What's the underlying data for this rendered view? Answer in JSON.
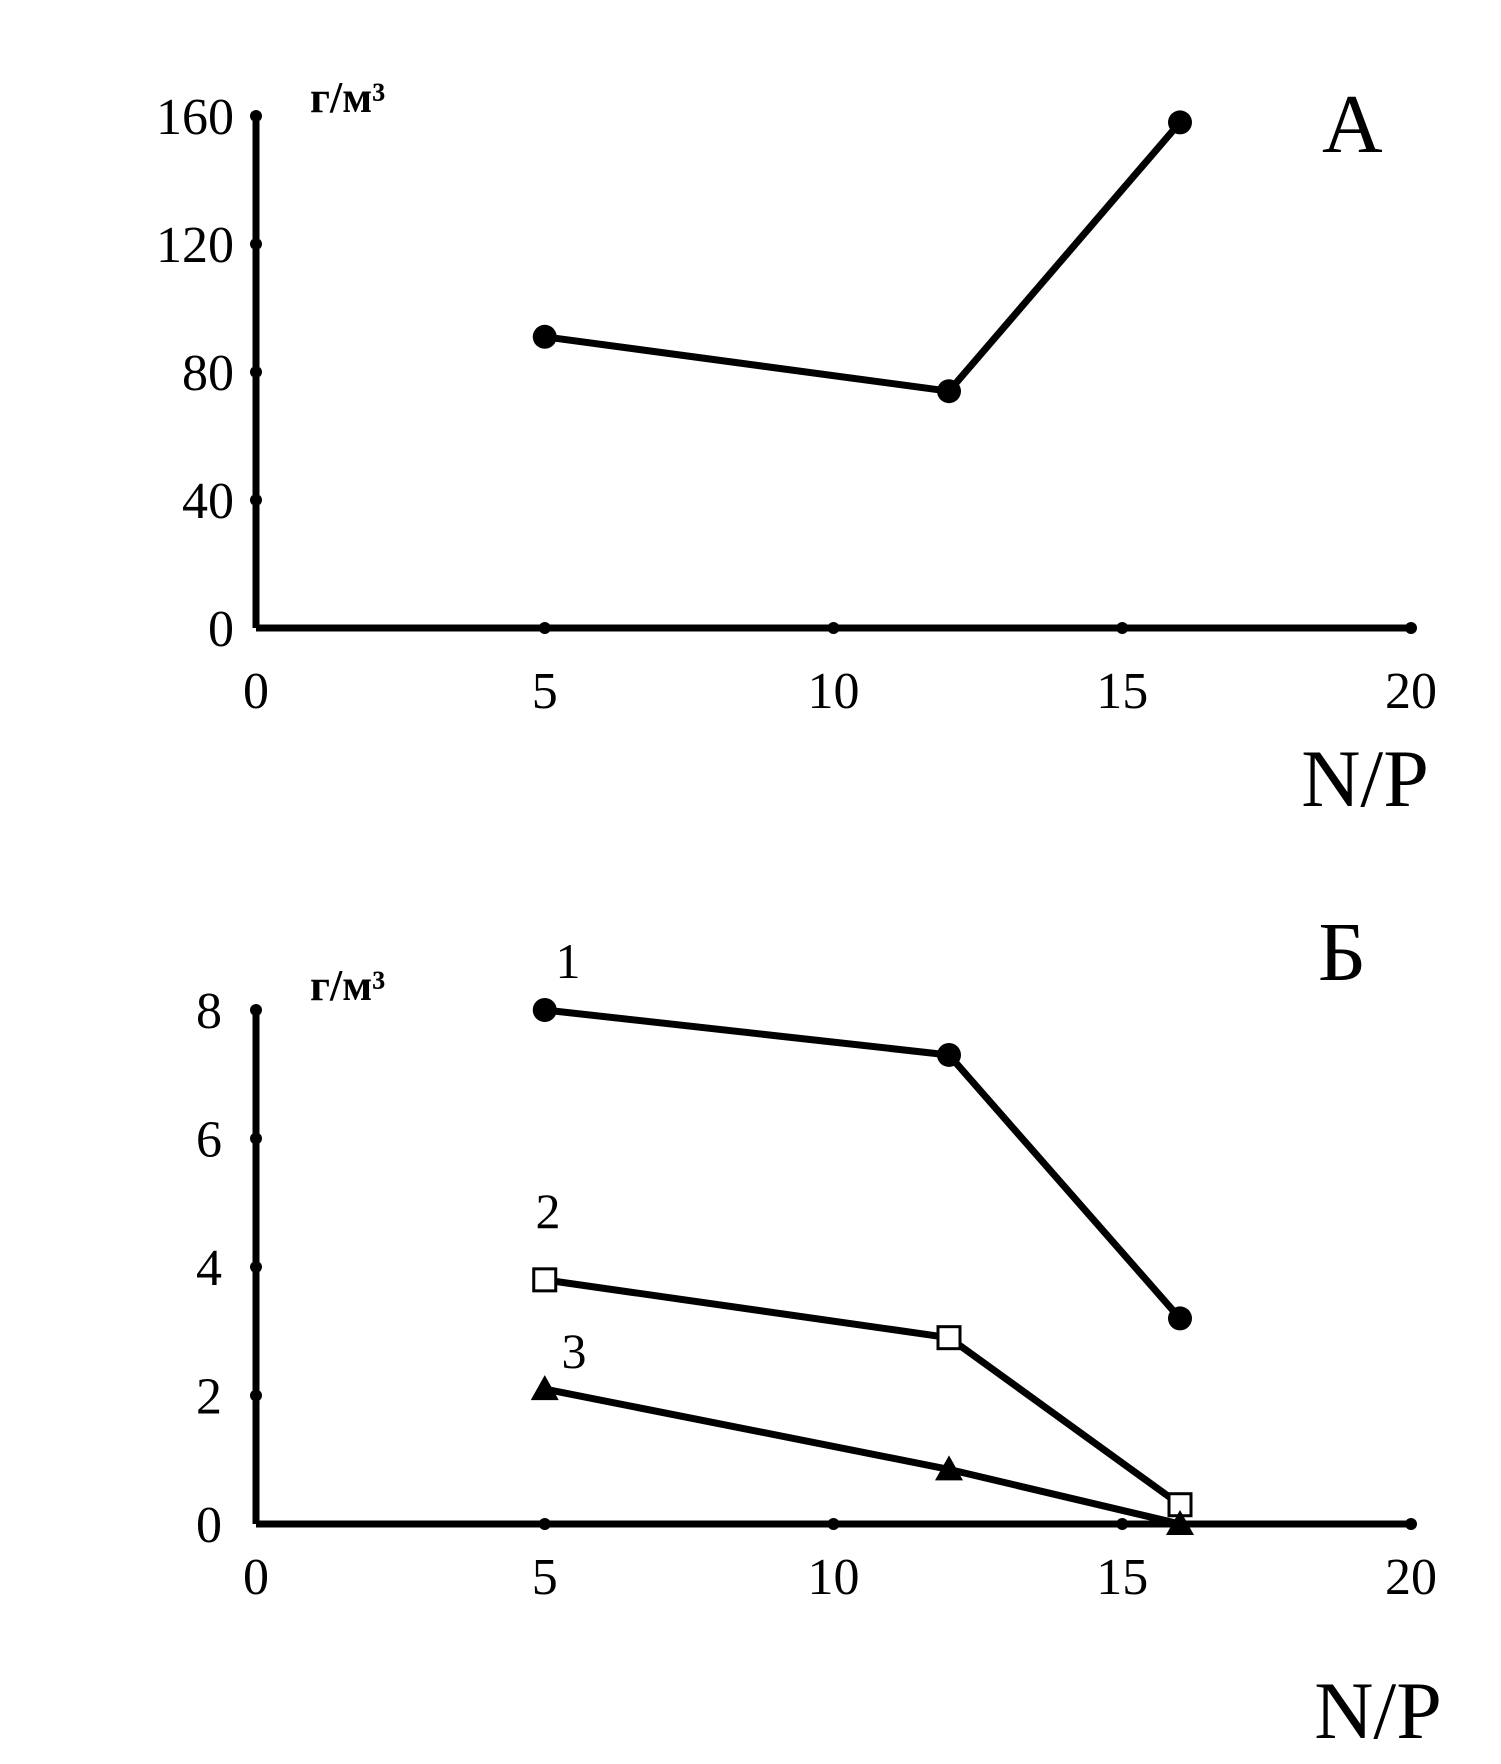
{
  "chart_data": [
    {
      "type": "line",
      "panel_label": "А",
      "ylabel": "г/м³",
      "xlabel": "N/P",
      "xlim": [
        0,
        20
      ],
      "ylim": [
        0,
        160
      ],
      "xticks": [
        "0",
        "5",
        "10",
        "15",
        "20"
      ],
      "yticks": [
        "0",
        "40",
        "80",
        "120",
        "160"
      ],
      "series": [
        {
          "x": [
            5,
            12,
            16
          ],
          "values": [
            91,
            74,
            158
          ],
          "marker": "circle-filled"
        }
      ],
      "grid": false
    },
    {
      "type": "line",
      "panel_label": "Б",
      "ylabel": "г/м³",
      "xlabel": "N/P",
      "xlim": [
        0,
        20
      ],
      "ylim": [
        0,
        8
      ],
      "xticks": [
        "0",
        "5",
        "10",
        "15",
        "20"
      ],
      "yticks": [
        "0",
        "2",
        "4",
        "6",
        "8"
      ],
      "series": [
        {
          "name": "1",
          "x": [
            5,
            12,
            16
          ],
          "values": [
            8.0,
            7.3,
            3.2
          ],
          "marker": "circle-filled"
        },
        {
          "name": "2",
          "x": [
            5,
            12,
            16
          ],
          "values": [
            3.8,
            2.9,
            0.3
          ],
          "marker": "square-open"
        },
        {
          "name": "3",
          "x": [
            5,
            12,
            16
          ],
          "values": [
            2.1,
            0.85,
            0.0
          ],
          "marker": "triangle-filled"
        }
      ],
      "grid": false
    }
  ],
  "colors": {
    "ink": "#000000",
    "background": "#ffffff"
  }
}
